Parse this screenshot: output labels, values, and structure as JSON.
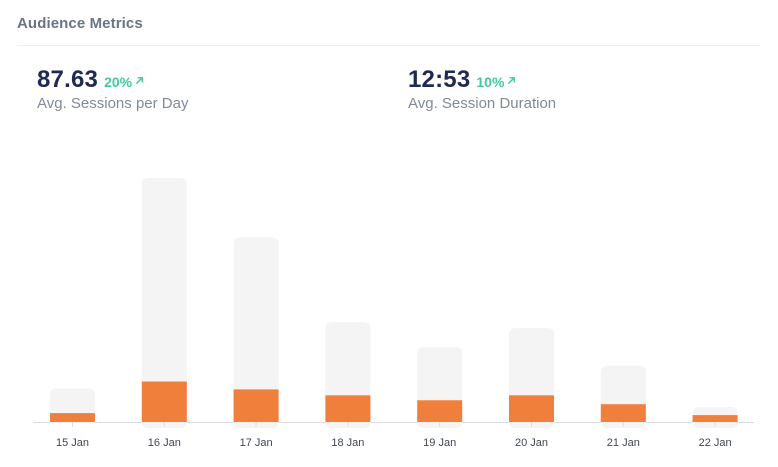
{
  "card": {
    "title": "Audience Metrics"
  },
  "metrics": [
    {
      "value": "87.63",
      "change": "20%",
      "label": "Avg. Sessions per Day"
    },
    {
      "value": "12:53",
      "change": "10%",
      "label": "Avg. Session Duration"
    }
  ],
  "colors": {
    "foreground": "#ef7f3a",
    "background_bar": "#f4f4f5",
    "positive": "#41c9a0",
    "axis": "#d9dce2"
  },
  "chart_data": {
    "type": "bar",
    "categories": [
      "15 Jan",
      "16 Jan",
      "17 Jan",
      "18 Jan",
      "19 Jan",
      "20 Jan",
      "21 Jan",
      "22 Jan"
    ],
    "series": [
      {
        "values": [
          34,
          247,
          187,
          101,
          76,
          95,
          57,
          15
        ]
      },
      {
        "values": [
          9,
          41,
          33,
          27,
          22,
          27,
          18,
          7
        ]
      }
    ],
    "ylim": [
      0,
      250
    ],
    "grid": false,
    "title": "",
    "xlabel": "",
    "ylabel": ""
  }
}
